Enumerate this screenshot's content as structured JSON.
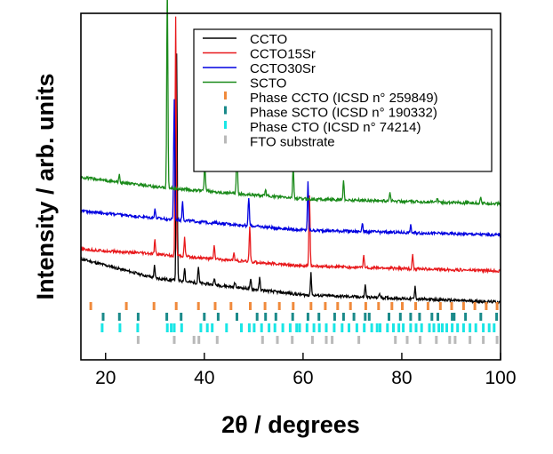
{
  "chart_data": {
    "type": "line",
    "title": "",
    "xlabel": "2θ / degrees",
    "ylabel": "Intensity / arb. units",
    "xlim": [
      15,
      100
    ],
    "xticks": [
      20,
      40,
      60,
      80,
      100
    ],
    "yticks_shown": false,
    "grid": false,
    "legend_position": "top-right",
    "series": [
      {
        "name": "CCTO",
        "color": "#000000",
        "baseline": [
          [
            15,
            0.18
          ],
          [
            30,
            0.1
          ],
          [
            60,
            0.03
          ],
          [
            100,
            0.0
          ]
        ],
        "peaks": [
          [
            29.9,
            0.05
          ],
          [
            34.4,
            0.95
          ],
          [
            36.0,
            0.06
          ],
          [
            38.8,
            0.07
          ],
          [
            42.0,
            0.03
          ],
          [
            46.2,
            0.02
          ],
          [
            49.4,
            0.04
          ],
          [
            51.2,
            0.05
          ],
          [
            61.6,
            0.09
          ],
          [
            72.6,
            0.05
          ],
          [
            75.5,
            0.02
          ],
          [
            82.7,
            0.05
          ]
        ]
      },
      {
        "name": "CCTO15Sr",
        "color": "#e8191c",
        "baseline": [
          [
            15,
            0.22
          ],
          [
            30,
            0.2
          ],
          [
            60,
            0.15
          ],
          [
            100,
            0.13
          ]
        ],
        "peaks": [
          [
            30.0,
            0.06
          ],
          [
            34.2,
            1.0
          ],
          [
            36.0,
            0.08
          ],
          [
            42.0,
            0.06
          ],
          [
            46.0,
            0.03
          ],
          [
            49.2,
            0.15
          ],
          [
            61.3,
            0.3
          ],
          [
            72.3,
            0.05
          ],
          [
            82.2,
            0.06
          ]
        ]
      },
      {
        "name": "CCTO30Sr",
        "color": "#0000e0",
        "baseline": [
          [
            15,
            0.38
          ],
          [
            30,
            0.35
          ],
          [
            60,
            0.3
          ],
          [
            100,
            0.28
          ]
        ],
        "peaks": [
          [
            30.0,
            0.04
          ],
          [
            33.9,
            0.5
          ],
          [
            35.6,
            0.08
          ],
          [
            49.0,
            0.12
          ],
          [
            61.0,
            0.2
          ],
          [
            72.0,
            0.04
          ],
          [
            81.8,
            0.03
          ]
        ]
      },
      {
        "name": "SCTO",
        "color": "#1a8a1a",
        "baseline": [
          [
            15,
            0.52
          ],
          [
            30,
            0.48
          ],
          [
            60,
            0.43
          ],
          [
            100,
            0.41
          ]
        ],
        "peaks": [
          [
            22.8,
            0.03
          ],
          [
            32.5,
            0.85
          ],
          [
            40.1,
            0.12
          ],
          [
            46.6,
            0.22
          ],
          [
            52.4,
            0.03
          ],
          [
            58.0,
            0.14
          ],
          [
            68.2,
            0.08
          ],
          [
            77.6,
            0.04
          ],
          [
            87.2,
            0.02
          ],
          [
            96.0,
            0.03
          ]
        ]
      }
    ],
    "reference_phases": [
      {
        "name": "Phase CCTO (ICSD n° 259849)",
        "color": "#f08a3c",
        "positions": [
          17.0,
          24.2,
          29.8,
          34.3,
          38.8,
          42.2,
          45.4,
          49.3,
          52.3,
          55.2,
          58.0,
          61.6,
          64.5,
          67.0,
          69.6,
          72.7,
          75.3,
          78.0,
          80.1,
          82.8,
          85.3,
          87.8,
          90.1,
          92.5,
          94.8,
          97.1,
          99.3
        ]
      },
      {
        "name": "Phase SCTO (ICSD n° 190332)",
        "color": "#1a8a8a",
        "positions": [
          19.5,
          22.8,
          26.6,
          32.4,
          35.3,
          40.0,
          42.8,
          46.6,
          50.7,
          52.4,
          54.5,
          57.9,
          61.0,
          63.2,
          66.4,
          68.2,
          70.3,
          72.6,
          73.4,
          77.4,
          79.7,
          81.8,
          83.6,
          86.1,
          87.3,
          90.2,
          90.6,
          92.9,
          96.0,
          99.2
        ]
      },
      {
        "name": "Phase CTO (ICSD n° 74214)",
        "color": "#19e6e6",
        "positions": [
          19.3,
          22.9,
          26.5,
          32.5,
          33.3,
          33.9,
          35.4,
          39.3,
          40.6,
          41.6,
          44.5,
          47.5,
          49.1,
          50.1,
          51.6,
          53.1,
          54.3,
          55.9,
          57.4,
          58.7,
          59.3,
          60.8,
          62.2,
          63.3,
          64.7,
          66.3,
          67.9,
          69.3,
          70.9,
          72.4,
          73.9,
          75.0,
          75.6,
          77.1,
          78.3,
          79.4,
          80.3,
          81.8,
          82.9,
          84.0,
          85.6,
          86.5,
          87.5,
          88.2,
          89.1,
          90.2,
          91.3,
          92.5,
          93.8,
          95.0,
          96.5,
          97.7,
          98.7
        ]
      },
      {
        "name": "FTO substrate",
        "color": "#b9b9b9",
        "positions": [
          26.6,
          33.9,
          37.9,
          38.9,
          42.6,
          51.8,
          54.8,
          57.8,
          61.9,
          64.7,
          65.9,
          71.3,
          78.7,
          81.1,
          83.7,
          87.0,
          89.7,
          90.8,
          93.8,
          96.5,
          99.3
        ]
      }
    ]
  }
}
